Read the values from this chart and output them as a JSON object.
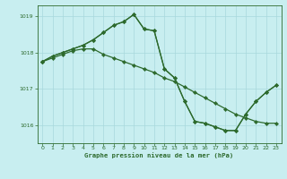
{
  "title": "Graphe pression niveau de la mer (hPa)",
  "background_color": "#c8eef0",
  "grid_color": "#a8d8dc",
  "line_color": "#2d6a2d",
  "marker_color": "#2d6a2d",
  "xlim": [
    -0.5,
    23.5
  ],
  "ylim": [
    1015.5,
    1019.3
  ],
  "yticks": [
    1016,
    1017,
    1018,
    1019
  ],
  "xticks": [
    0,
    1,
    2,
    3,
    4,
    5,
    6,
    7,
    8,
    9,
    10,
    11,
    12,
    13,
    14,
    15,
    16,
    17,
    18,
    19,
    20,
    21,
    22,
    23
  ],
  "series1": [
    1017.75,
    1017.85,
    1017.95,
    1018.05,
    1018.1,
    1018.1,
    1017.95,
    1017.85,
    1017.75,
    1017.65,
    1017.55,
    1017.45,
    1017.3,
    1017.2,
    1017.05,
    1016.9,
    1016.75,
    1016.6,
    1016.45,
    1016.3,
    1016.2,
    1016.1,
    1016.05,
    1016.05
  ],
  "series2": [
    1017.75,
    1017.9,
    1018.0,
    1018.1,
    1018.2,
    1018.35,
    1018.55,
    1018.75,
    1018.85,
    1019.05,
    1018.65,
    1018.6,
    1017.55,
    1017.3,
    1016.65,
    1016.1,
    1016.05,
    1015.95,
    1015.85,
    1015.85,
    1016.3,
    1016.65,
    1016.9,
    1017.1
  ],
  "series3": [
    1017.75,
    1017.9,
    1018.0,
    1018.1,
    1018.2,
    1018.35,
    1018.55,
    1018.75,
    1018.85,
    1019.05,
    1018.65,
    1018.6,
    1017.55,
    1017.3,
    1016.65,
    1016.1,
    1016.05,
    1015.95,
    1015.85,
    1015.85,
    1016.3,
    1016.65,
    1016.9,
    1017.1
  ]
}
